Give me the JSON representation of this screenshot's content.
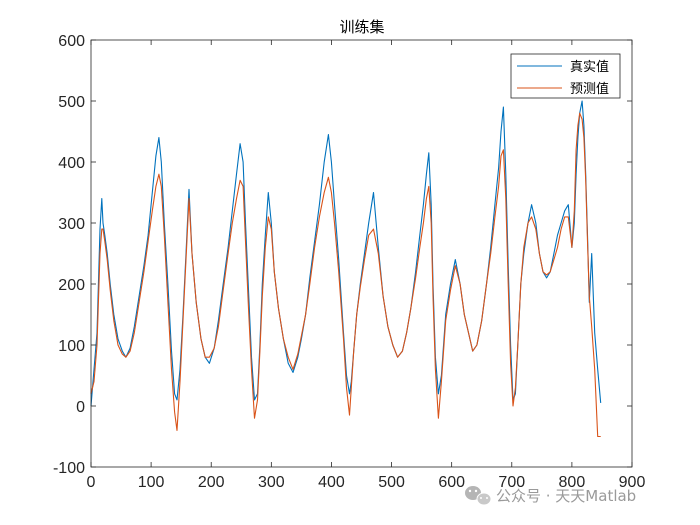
{
  "colors": {
    "true_series": "#0072BD",
    "pred_series": "#D95319",
    "axis": "#262626",
    "watermark": "#9a9a9a"
  },
  "watermark": {
    "icon": "wechat-logo-icon",
    "text": "公众号 · 天天Matlab"
  },
  "chart_data": {
    "type": "line",
    "title": "训练集",
    "xlabel": "",
    "ylabel": "",
    "xlim": [
      0,
      900
    ],
    "ylim": [
      -100,
      600
    ],
    "xticks": [
      0,
      100,
      200,
      300,
      400,
      500,
      600,
      700,
      800,
      900
    ],
    "yticks": [
      -100,
      0,
      100,
      200,
      300,
      400,
      500,
      600
    ],
    "xtick_labels": [
      "0",
      "100",
      "200",
      "300",
      "400",
      "500",
      "600",
      "700",
      "800",
      "900"
    ],
    "ytick_labels": [
      "-100",
      "0",
      "100",
      "200",
      "300",
      "400",
      "500",
      "600"
    ],
    "legend_position": "top-right",
    "series": [
      {
        "name": "真实值",
        "color": "#0072BD",
        "x": [
          0,
          5,
          10,
          15,
          18,
          20,
          23,
          27,
          32,
          38,
          45,
          52,
          58,
          65,
          72,
          80,
          88,
          95,
          102,
          108,
          113,
          117,
          122,
          128,
          134,
          139,
          143,
          148,
          153,
          158,
          163,
          168,
          175,
          183,
          190,
          197,
          205,
          212,
          220,
          228,
          235,
          242,
          248,
          253,
          257,
          262,
          267,
          272,
          277,
          281,
          285,
          290,
          295,
          300,
          305,
          312,
          320,
          328,
          336,
          344,
          350,
          357,
          364,
          372,
          380,
          388,
          395,
          400,
          405,
          412,
          420,
          425,
          430,
          433,
          437,
          442,
          448,
          455,
          462,
          470,
          478,
          486,
          494,
          502,
          510,
          518,
          525,
          532,
          540,
          547,
          553,
          558,
          562,
          566,
          569,
          573,
          578,
          583,
          590,
          598,
          606,
          614,
          621,
          628,
          635,
          642,
          650,
          658,
          665,
          672,
          678,
          682,
          686,
          690,
          694,
          698,
          702,
          706,
          710,
          715,
          720,
          727,
          733,
          740,
          746,
          752,
          758,
          764,
          770,
          776,
          782,
          788,
          794,
          800,
          804,
          807,
          810,
          813,
          817,
          820,
          823,
          826,
          829,
          833,
          838,
          843,
          848
        ],
        "y": [
          0,
          60,
          120,
          290,
          340,
          300,
          280,
          250,
          200,
          150,
          110,
          90,
          80,
          95,
          130,
          180,
          230,
          280,
          350,
          410,
          440,
          400,
          300,
          200,
          90,
          20,
          10,
          60,
          150,
          250,
          355,
          250,
          170,
          110,
          80,
          70,
          95,
          140,
          200,
          260,
          320,
          380,
          430,
          400,
          300,
          190,
          80,
          10,
          20,
          100,
          200,
          280,
          350,
          300,
          220,
          160,
          110,
          70,
          55,
          80,
          110,
          150,
          210,
          270,
          330,
          400,
          445,
          400,
          330,
          240,
          120,
          50,
          20,
          40,
          90,
          150,
          200,
          250,
          300,
          350,
          260,
          180,
          130,
          100,
          80,
          90,
          120,
          160,
          220,
          280,
          330,
          380,
          415,
          330,
          200,
          80,
          20,
          50,
          150,
          200,
          240,
          200,
          150,
          120,
          90,
          100,
          140,
          200,
          260,
          330,
          390,
          450,
          490,
          380,
          230,
          100,
          10,
          20,
          100,
          200,
          250,
          300,
          330,
          300,
          250,
          220,
          210,
          220,
          250,
          280,
          300,
          320,
          330,
          260,
          300,
          380,
          440,
          480,
          500,
          460,
          380,
          280,
          170,
          250,
          120,
          60,
          5
        ]
      },
      {
        "name": "预测值",
        "color": "#D95319",
        "x": [
          0,
          5,
          10,
          15,
          18,
          20,
          23,
          27,
          32,
          38,
          45,
          52,
          58,
          65,
          72,
          80,
          88,
          95,
          102,
          108,
          113,
          117,
          122,
          128,
          134,
          139,
          143,
          148,
          153,
          158,
          163,
          168,
          175,
          183,
          190,
          197,
          205,
          212,
          220,
          228,
          235,
          242,
          248,
          253,
          257,
          262,
          267,
          272,
          277,
          281,
          285,
          290,
          295,
          300,
          305,
          312,
          320,
          328,
          336,
          344,
          350,
          357,
          364,
          372,
          380,
          388,
          395,
          400,
          405,
          412,
          420,
          425,
          430,
          433,
          437,
          442,
          448,
          455,
          462,
          470,
          478,
          486,
          494,
          502,
          510,
          518,
          525,
          532,
          540,
          547,
          553,
          558,
          562,
          566,
          569,
          573,
          578,
          583,
          590,
          598,
          606,
          614,
          621,
          628,
          635,
          642,
          650,
          658,
          665,
          672,
          678,
          682,
          686,
          690,
          694,
          698,
          702,
          706,
          710,
          715,
          720,
          727,
          733,
          740,
          746,
          752,
          758,
          764,
          770,
          776,
          782,
          788,
          794,
          800,
          804,
          807,
          810,
          813,
          817,
          820,
          823,
          826,
          829,
          833,
          838,
          843,
          848
        ],
        "y": [
          20,
          40,
          100,
          250,
          290,
          290,
          270,
          240,
          190,
          140,
          100,
          85,
          80,
          90,
          120,
          170,
          220,
          270,
          320,
          360,
          380,
          360,
          280,
          170,
          60,
          -10,
          -40,
          40,
          140,
          240,
          340,
          250,
          170,
          110,
          80,
          80,
          95,
          130,
          190,
          250,
          300,
          340,
          370,
          360,
          270,
          160,
          60,
          -20,
          10,
          90,
          180,
          260,
          310,
          290,
          220,
          160,
          110,
          80,
          60,
          85,
          115,
          150,
          200,
          260,
          310,
          350,
          375,
          350,
          300,
          220,
          110,
          30,
          -15,
          30,
          90,
          150,
          195,
          240,
          280,
          290,
          250,
          180,
          130,
          100,
          80,
          90,
          120,
          160,
          210,
          260,
          300,
          340,
          360,
          300,
          180,
          60,
          -20,
          40,
          140,
          190,
          230,
          200,
          150,
          120,
          90,
          100,
          140,
          200,
          250,
          310,
          360,
          410,
          420,
          340,
          200,
          70,
          0,
          30,
          100,
          200,
          260,
          300,
          310,
          290,
          250,
          220,
          215,
          220,
          240,
          260,
          290,
          310,
          310,
          260,
          320,
          420,
          460,
          480,
          470,
          440,
          370,
          270,
          180,
          130,
          60,
          -50,
          -50
        ]
      }
    ]
  }
}
